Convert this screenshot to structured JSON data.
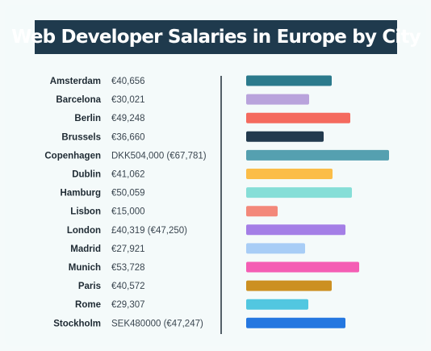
{
  "title": "Web Developer Salaries in Europe by City",
  "chart_data": {
    "type": "bar",
    "orientation": "horizontal",
    "title": "Web Developer Salaries in Europe by City",
    "categories": [
      "Amsterdam",
      "Barcelona",
      "Berlin",
      "Brussels",
      "Copenhagen",
      "Dublin",
      "Hamburg",
      "Lisbon",
      "London",
      "Madrid",
      "Munich",
      "Paris",
      "Rome",
      "Stockholm"
    ],
    "labels": [
      "€40,656",
      "€30,021",
      "€49,248",
      "€36,660",
      "DKK504,000 (€67,781)",
      "€41,062",
      "€50,059",
      "€15,000",
      "£40,319 (€47,250)",
      "€27,921",
      "€53,728",
      "€40,572",
      "€29,307",
      "SEK480000  (€47,247)"
    ],
    "values": [
      40656,
      30021,
      49248,
      36660,
      67781,
      41062,
      50059,
      15000,
      47250,
      27921,
      53728,
      40572,
      29307,
      47247
    ],
    "colors": [
      "#2b7a8c",
      "#b9a3dc",
      "#f46a5e",
      "#223a4e",
      "#55a0b0",
      "#fbbd48",
      "#86ded7",
      "#f3887a",
      "#a47ee6",
      "#a8cdf6",
      "#f45eb4",
      "#cc9022",
      "#52c7e0",
      "#2477e0"
    ],
    "grid": false,
    "legend": "none"
  }
}
